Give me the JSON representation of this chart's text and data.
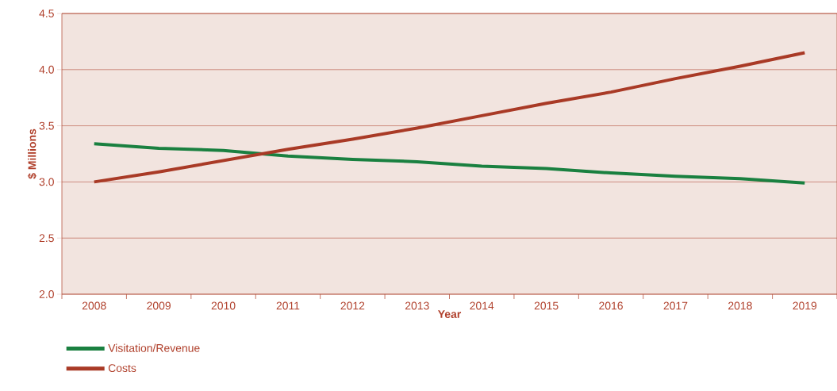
{
  "chart_data": {
    "type": "line",
    "xlabel": "Year",
    "ylabel": "$ Millions",
    "categories": [
      "2008",
      "2009",
      "2010",
      "2011",
      "2012",
      "2013",
      "2014",
      "2015",
      "2016",
      "2017",
      "2018",
      "2019"
    ],
    "series": [
      {
        "name": "Visitation/Revenue",
        "color": "#1a8040",
        "values": [
          3.34,
          3.3,
          3.28,
          3.23,
          3.2,
          3.18,
          3.14,
          3.12,
          3.08,
          3.05,
          3.03,
          2.99
        ]
      },
      {
        "name": "Costs",
        "color": "#a93a26",
        "values": [
          3.0,
          3.09,
          3.19,
          3.29,
          3.38,
          3.48,
          3.59,
          3.7,
          3.8,
          3.92,
          4.03,
          4.15
        ]
      }
    ],
    "ylim": [
      2.0,
      4.5
    ],
    "yticks": [
      {
        "value": 2.0,
        "label": "2.0"
      },
      {
        "value": 2.5,
        "label": "2.5"
      },
      {
        "value": 3.0,
        "label": "3.0"
      },
      {
        "value": 3.5,
        "label": "3.5"
      },
      {
        "value": 4.0,
        "label": "4.0"
      },
      {
        "value": 4.5,
        "label": "4.5"
      }
    ],
    "grid": "y",
    "legend": "bottom left",
    "marker": "none",
    "line_style": "solid"
  }
}
